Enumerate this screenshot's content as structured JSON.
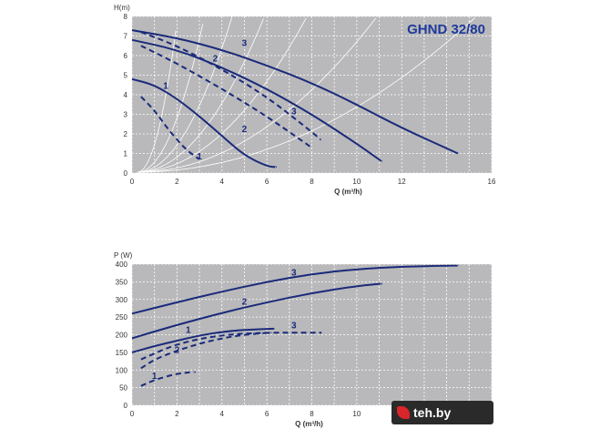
{
  "chart_data": [
    {
      "type": "line",
      "title": "GHND 32/80",
      "ylabel": "H(m)",
      "xlabel": "Q (m³/h)",
      "xlim": [
        0,
        16
      ],
      "ylim": [
        0,
        8
      ],
      "xticks": [
        "0",
        "2",
        "4",
        "6",
        "8",
        "10",
        "12",
        "16"
      ],
      "xtick_values": [
        0,
        2,
        4,
        6,
        8,
        10,
        12,
        16
      ],
      "yticks": [
        "0",
        "1",
        "2",
        "3",
        "4",
        "5",
        "6",
        "7",
        "8"
      ],
      "grid": true,
      "series": [
        {
          "name": "1",
          "style": "solid",
          "x": [
            0,
            1,
            2,
            3,
            4,
            5,
            6,
            6.4
          ],
          "y": [
            4.8,
            4.5,
            3.8,
            2.9,
            1.9,
            0.9,
            0.35,
            0.3
          ]
        },
        {
          "name": "1",
          "style": "dashed",
          "x": [
            0.4,
            1,
            1.5,
            2,
            2.5,
            3
          ],
          "y": [
            3.9,
            3.2,
            2.4,
            1.7,
            1.1,
            0.7
          ]
        },
        {
          "name": "2",
          "style": "solid",
          "x": [
            0,
            2,
            4,
            6,
            8,
            10,
            11.1
          ],
          "y": [
            6.8,
            6.3,
            5.4,
            4.3,
            3.0,
            1.5,
            0.6
          ]
        },
        {
          "name": "2",
          "style": "dashed",
          "x": [
            0.4,
            2,
            4,
            6,
            8
          ],
          "y": [
            6.5,
            5.6,
            4.3,
            2.9,
            1.3
          ]
        },
        {
          "name": "3",
          "style": "solid",
          "x": [
            0,
            2,
            4,
            6,
            8,
            10,
            12,
            14.5
          ],
          "y": [
            7.3,
            6.9,
            6.3,
            5.5,
            4.6,
            3.5,
            2.3,
            1.0
          ]
        },
        {
          "name": "3",
          "style": "dashed",
          "x": [
            0.4,
            2,
            4,
            6,
            8,
            8.4
          ],
          "y": [
            7.2,
            6.5,
            5.3,
            3.9,
            2.1,
            1.7
          ]
        }
      ],
      "curve_labels": [
        {
          "text": "3",
          "x": 5.0,
          "y": 6.5
        },
        {
          "text": "2",
          "x": 3.7,
          "y": 5.7
        },
        {
          "text": "1",
          "x": 1.5,
          "y": 4.3
        },
        {
          "text": "3",
          "x": 7.2,
          "y": 3.0
        },
        {
          "text": "2",
          "x": 5.0,
          "y": 2.1
        },
        {
          "text": "1",
          "x": 3.0,
          "y": 0.7
        }
      ]
    },
    {
      "type": "line",
      "ylabel": "P (W)",
      "xlabel": "Q (m³/h)",
      "xlim": [
        0,
        16
      ],
      "ylim": [
        0,
        400
      ],
      "xticks": [
        "0",
        "2",
        "4",
        "6",
        "8",
        "10"
      ],
      "xtick_values": [
        0,
        2,
        4,
        6,
        8,
        10
      ],
      "yticks": [
        "0",
        "50",
        "100",
        "150",
        "200",
        "250",
        "300",
        "350",
        "400"
      ],
      "grid": true,
      "series": [
        {
          "name": "3",
          "style": "solid",
          "x": [
            0,
            2,
            4,
            6,
            8,
            10,
            12,
            14.5
          ],
          "y": [
            260,
            292,
            322,
            350,
            372,
            386,
            393,
            396
          ]
        },
        {
          "name": "2",
          "style": "solid",
          "x": [
            0,
            2,
            4,
            6,
            8,
            10,
            11.1
          ],
          "y": [
            190,
            228,
            262,
            292,
            318,
            338,
            345
          ]
        },
        {
          "name": "1",
          "style": "solid",
          "x": [
            0,
            1,
            2,
            3,
            4,
            5,
            6.3
          ],
          "y": [
            150,
            168,
            183,
            198,
            208,
            214,
            217
          ]
        },
        {
          "name": "3",
          "style": "dashed",
          "x": [
            0.4,
            2,
            4,
            6,
            8.4
          ],
          "y": [
            130,
            175,
            200,
            206,
            206
          ]
        },
        {
          "name": "2",
          "style": "dashed",
          "x": [
            0.4,
            1,
            2,
            3,
            4,
            5,
            6.2
          ],
          "y": [
            105,
            130,
            155,
            175,
            190,
            200,
            206
          ]
        },
        {
          "name": "1",
          "style": "dashed",
          "x": [
            0.4,
            1,
            2,
            2.8
          ],
          "y": [
            55,
            72,
            90,
            95
          ]
        }
      ],
      "curve_labels": [
        {
          "text": "3",
          "x": 7.2,
          "y": 368
        },
        {
          "text": "2",
          "x": 5.0,
          "y": 285
        },
        {
          "text": "1",
          "x": 2.5,
          "y": 205
        },
        {
          "text": "3",
          "x": 7.2,
          "y": 218
        },
        {
          "text": "2",
          "x": 2.0,
          "y": 148
        },
        {
          "text": "1",
          "x": 1.0,
          "y": 75
        }
      ]
    }
  ],
  "watermark": {
    "text": "teh.by",
    "color_badge": "#2a2a2a",
    "color_leaf": "#d8262b"
  },
  "colors": {
    "plot_bg": "#b9b9bb",
    "grid": "#ffffff",
    "curve": "#1a2a7a",
    "system_curve": "#ffffff"
  }
}
